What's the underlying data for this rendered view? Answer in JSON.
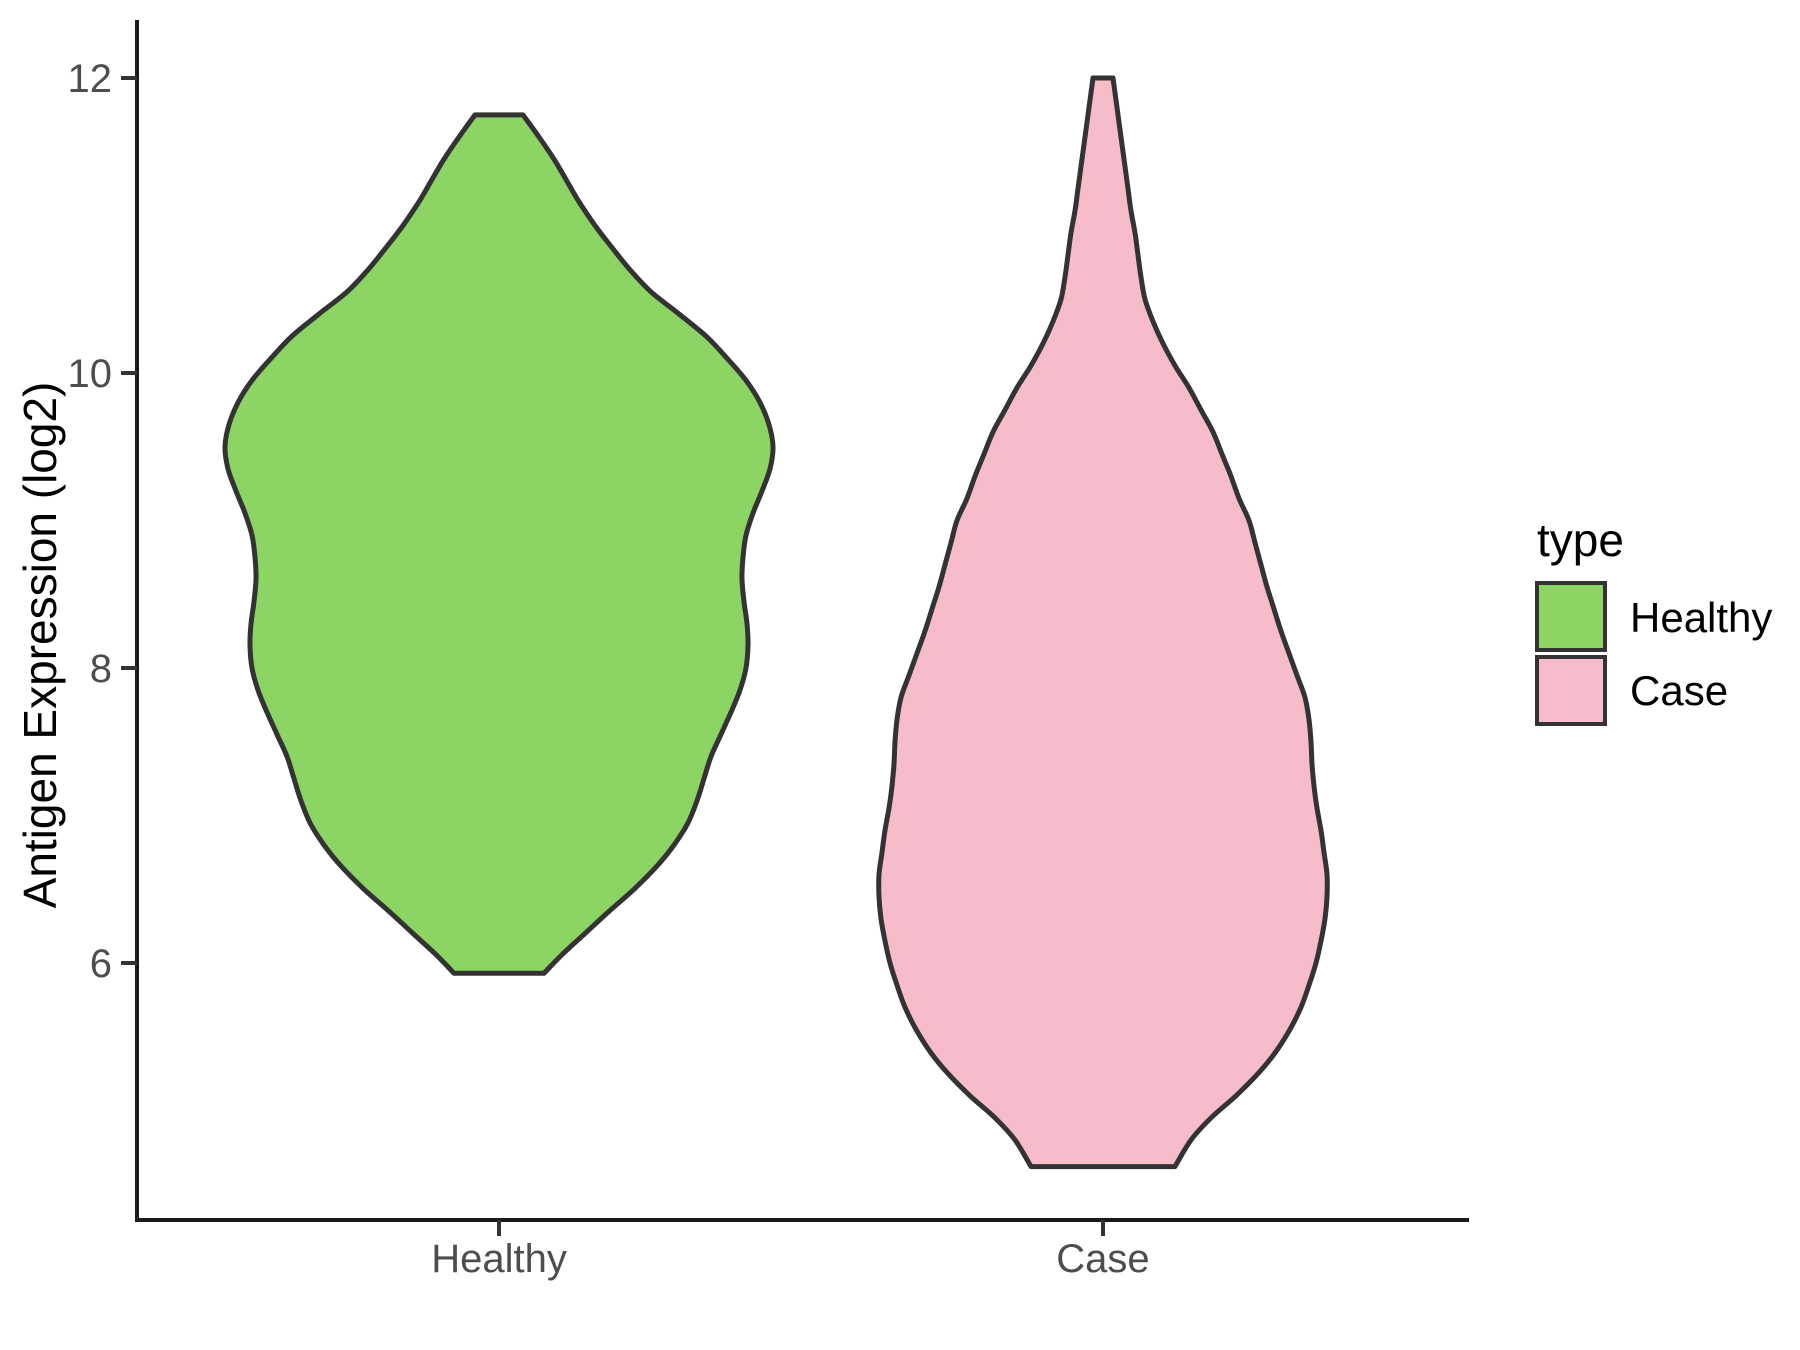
{
  "page": {
    "background": "#ffffff"
  },
  "chart_data": {
    "type": "violin",
    "title": "",
    "xlabel": "",
    "ylabel": "Antigen Expression (log2)",
    "categories": [
      "Healthy",
      "Case"
    ],
    "y_ticks": [
      12,
      10,
      8,
      6
    ],
    "y_tick_labels": [
      "12",
      "10",
      "8",
      "6"
    ],
    "ylim": [
      4.3,
      12.4
    ],
    "grid": "off",
    "legend": {
      "title": "type",
      "position": "right",
      "entries": [
        {
          "label": "Healthy",
          "color": "#8CD564"
        },
        {
          "label": "Case",
          "color": "#F6BCC9"
        }
      ]
    },
    "outline_color": "#333333",
    "series": [
      {
        "name": "Healthy",
        "fill": "#8CD564",
        "value_range": [
          5.93,
          11.75
        ],
        "profile": [
          [
            11.75,
            24
          ],
          [
            11.6,
            40
          ],
          [
            11.45,
            55
          ],
          [
            11.3,
            68
          ],
          [
            11.15,
            81
          ],
          [
            11.0,
            96
          ],
          [
            10.85,
            113
          ],
          [
            10.7,
            131
          ],
          [
            10.55,
            152
          ],
          [
            10.4,
            180
          ],
          [
            10.25,
            207
          ],
          [
            10.1,
            228
          ],
          [
            9.95,
            247
          ],
          [
            9.8,
            261
          ],
          [
            9.65,
            270
          ],
          [
            9.5,
            274
          ],
          [
            9.35,
            271
          ],
          [
            9.2,
            263
          ],
          [
            9.05,
            254
          ],
          [
            8.9,
            247
          ],
          [
            8.75,
            244
          ],
          [
            8.6,
            243
          ],
          [
            8.45,
            245
          ],
          [
            8.3,
            248
          ],
          [
            8.15,
            249
          ],
          [
            8.0,
            247
          ],
          [
            7.85,
            241
          ],
          [
            7.7,
            232
          ],
          [
            7.55,
            222
          ],
          [
            7.4,
            212
          ],
          [
            7.25,
            205
          ],
          [
            7.1,
            198
          ],
          [
            6.95,
            189
          ],
          [
            6.8,
            175
          ],
          [
            6.65,
            157
          ],
          [
            6.5,
            135
          ],
          [
            6.35,
            110
          ],
          [
            6.2,
            86
          ],
          [
            6.05,
            62
          ],
          [
            5.93,
            45
          ]
        ]
      },
      {
        "name": "Case",
        "fill": "#F6BCC9",
        "value_range": [
          4.62,
          12.0
        ],
        "profile": [
          [
            12.0,
            10
          ],
          [
            11.85,
            13
          ],
          [
            11.7,
            16
          ],
          [
            11.55,
            19
          ],
          [
            11.4,
            22
          ],
          [
            11.25,
            25
          ],
          [
            11.1,
            28
          ],
          [
            10.95,
            32
          ],
          [
            10.8,
            35
          ],
          [
            10.65,
            38
          ],
          [
            10.5,
            42
          ],
          [
            10.35,
            50
          ],
          [
            10.2,
            60
          ],
          [
            10.05,
            72
          ],
          [
            9.9,
            86
          ],
          [
            9.75,
            98
          ],
          [
            9.6,
            110
          ],
          [
            9.45,
            119
          ],
          [
            9.3,
            128
          ],
          [
            9.15,
            136
          ],
          [
            9.0,
            146
          ],
          [
            8.85,
            152
          ],
          [
            8.7,
            158
          ],
          [
            8.55,
            164
          ],
          [
            8.4,
            171
          ],
          [
            8.25,
            178
          ],
          [
            8.1,
            186
          ],
          [
            7.95,
            194
          ],
          [
            7.8,
            202
          ],
          [
            7.65,
            206
          ],
          [
            7.5,
            208
          ],
          [
            7.35,
            209
          ],
          [
            7.2,
            211
          ],
          [
            7.05,
            214
          ],
          [
            6.9,
            218
          ],
          [
            6.75,
            221
          ],
          [
            6.6,
            224
          ],
          [
            6.45,
            224
          ],
          [
            6.3,
            222
          ],
          [
            6.15,
            218
          ],
          [
            6.0,
            213
          ],
          [
            5.85,
            206
          ],
          [
            5.7,
            198
          ],
          [
            5.55,
            187
          ],
          [
            5.4,
            173
          ],
          [
            5.25,
            155
          ],
          [
            5.1,
            133
          ],
          [
            4.95,
            108
          ],
          [
            4.8,
            88
          ],
          [
            4.62,
            72
          ]
        ]
      }
    ]
  }
}
